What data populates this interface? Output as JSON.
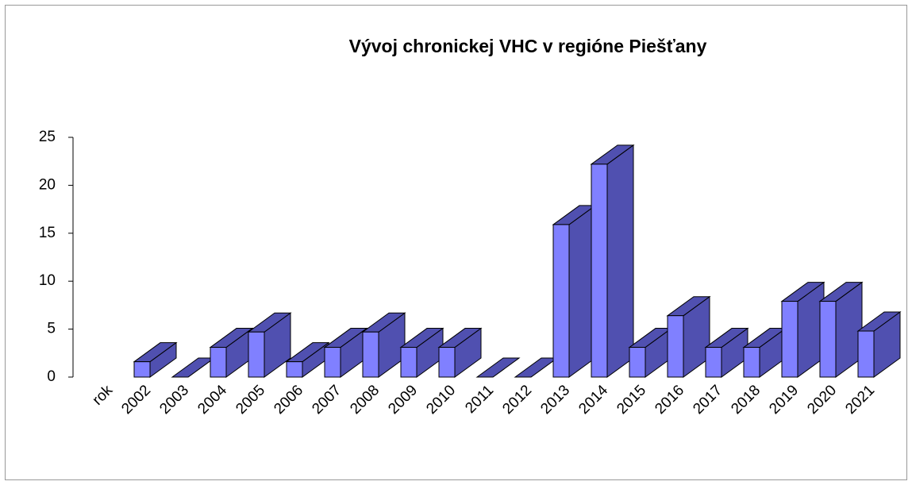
{
  "chart_data": {
    "type": "bar3d",
    "title": "Vývoj chronickej VHC v regióne Piešťany",
    "categories": [
      "rok",
      "2002",
      "2003",
      "2004",
      "2005",
      "2006",
      "2007",
      "2008",
      "2009",
      "2010",
      "2011",
      "2012",
      "2013",
      "2014",
      "2015",
      "2016",
      "2017",
      "2018",
      "2019",
      "2020",
      "2021"
    ],
    "values": [
      null,
      1.6,
      0,
      3.1,
      4.7,
      1.6,
      3.1,
      4.7,
      3.1,
      3.1,
      0,
      0,
      15.9,
      22.2,
      3.1,
      6.4,
      3.1,
      3.1,
      7.9,
      7.9,
      4.8
    ],
    "color": "#8080ff",
    "side_color": "#5050b0",
    "ylim": [
      0,
      25
    ],
    "yticks": [
      0,
      5,
      10,
      15,
      20,
      25
    ],
    "grid": false
  }
}
